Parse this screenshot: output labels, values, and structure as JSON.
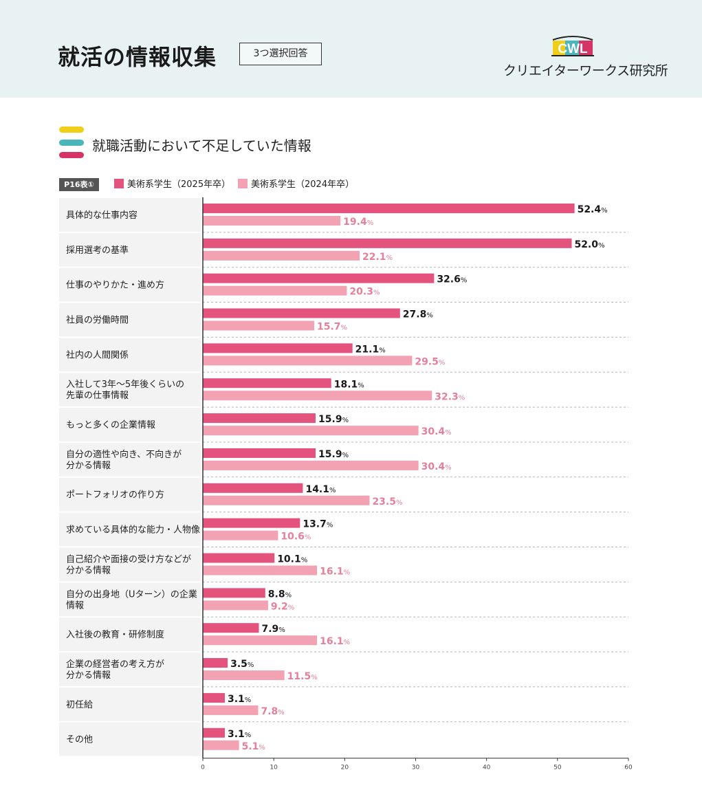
{
  "header": {
    "title": "就活の情報収集",
    "badge": "3つ選択回答",
    "logo_text": "クリエイターワークス研究所",
    "logo_mark": "CWL"
  },
  "section": {
    "title": "就職活動において不足していた情報"
  },
  "legend": {
    "table_tag": "P16表①"
  },
  "colors": {
    "series_2025": "#e4527e",
    "series_2024": "#f2a2b2",
    "label_2025": "#1a1a1a",
    "label_2024": "#e4809a",
    "bar_yellow": "#f0cf1a",
    "bar_teal": "#4bb6b9",
    "bar_magenta": "#d63467"
  },
  "chart_data": {
    "type": "bar",
    "orientation": "horizontal",
    "title": "就職活動において不足していた情報",
    "xlabel": "",
    "ylabel": "",
    "xlim": [
      0,
      60
    ],
    "xticks": [
      0,
      10,
      20,
      30,
      40,
      50,
      60
    ],
    "value_suffix": "%",
    "categories": [
      "具体的な仕事内容",
      "採用選考の基準",
      "仕事のやりかた・進め方",
      "社員の労働時間",
      "社内の人間関係",
      "入社して3年〜5年後くらいの\n先輩の仕事情報",
      "もっと多くの企業情報",
      "自分の適性や向き、不向きが\n分かる情報",
      "ポートフォリオの作り方",
      "求めている具体的な能力・人物像",
      "自己紹介や面接の受け方などが\n分かる情報",
      "自分の出身地（Uターン）の企業\n情報",
      "入社後の教育・研修制度",
      "企業の経営者の考え方が\n分かる情報",
      "初任給",
      "その他"
    ],
    "series": [
      {
        "name": "美術系学生（2025年卒）",
        "values": [
          52.4,
          52.0,
          32.6,
          27.8,
          21.1,
          18.1,
          15.9,
          15.9,
          14.1,
          13.7,
          10.1,
          8.8,
          7.9,
          3.5,
          3.1,
          3.1
        ]
      },
      {
        "name": "美術系学生（2024年卒）",
        "values": [
          19.4,
          22.1,
          20.3,
          15.7,
          29.5,
          32.3,
          30.4,
          30.4,
          23.5,
          10.6,
          16.1,
          9.2,
          16.1,
          11.5,
          7.8,
          5.1
        ]
      }
    ]
  }
}
